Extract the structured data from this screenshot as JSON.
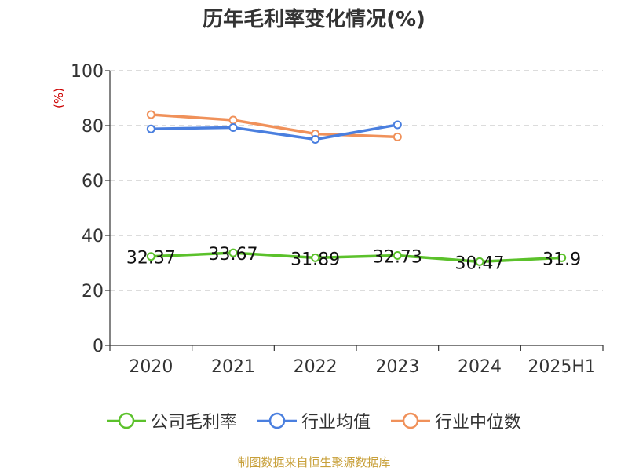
{
  "chart_data": {
    "type": "line",
    "title": "历年毛利率变化情况(%)",
    "ylabel": "(%)",
    "xlabel": "",
    "categories": [
      "2020",
      "2021",
      "2022",
      "2023",
      "2024",
      "2025H1"
    ],
    "ylim": [
      0,
      100
    ],
    "yticks": [
      0,
      20,
      40,
      60,
      80,
      100
    ],
    "grid": true,
    "legend_position": "bottom",
    "series": [
      {
        "name": "公司毛利率",
        "color": "#5bc12b",
        "labeled": true,
        "values": [
          32.37,
          33.67,
          31.89,
          32.73,
          30.47,
          31.9
        ],
        "labels": [
          "32.37",
          "33.67",
          "31.89",
          "32.73",
          "30.47",
          "31.9"
        ]
      },
      {
        "name": "行业均值",
        "color": "#4a7fdf",
        "labeled": false,
        "values": [
          78.8,
          79.3,
          75.0,
          80.3,
          null,
          null
        ]
      },
      {
        "name": "行业中位数",
        "color": "#f0915a",
        "labeled": false,
        "values": [
          84.0,
          82.0,
          77.0,
          75.9,
          null,
          null
        ]
      }
    ]
  },
  "source_note": "制图数据来自恒生聚源数据库"
}
